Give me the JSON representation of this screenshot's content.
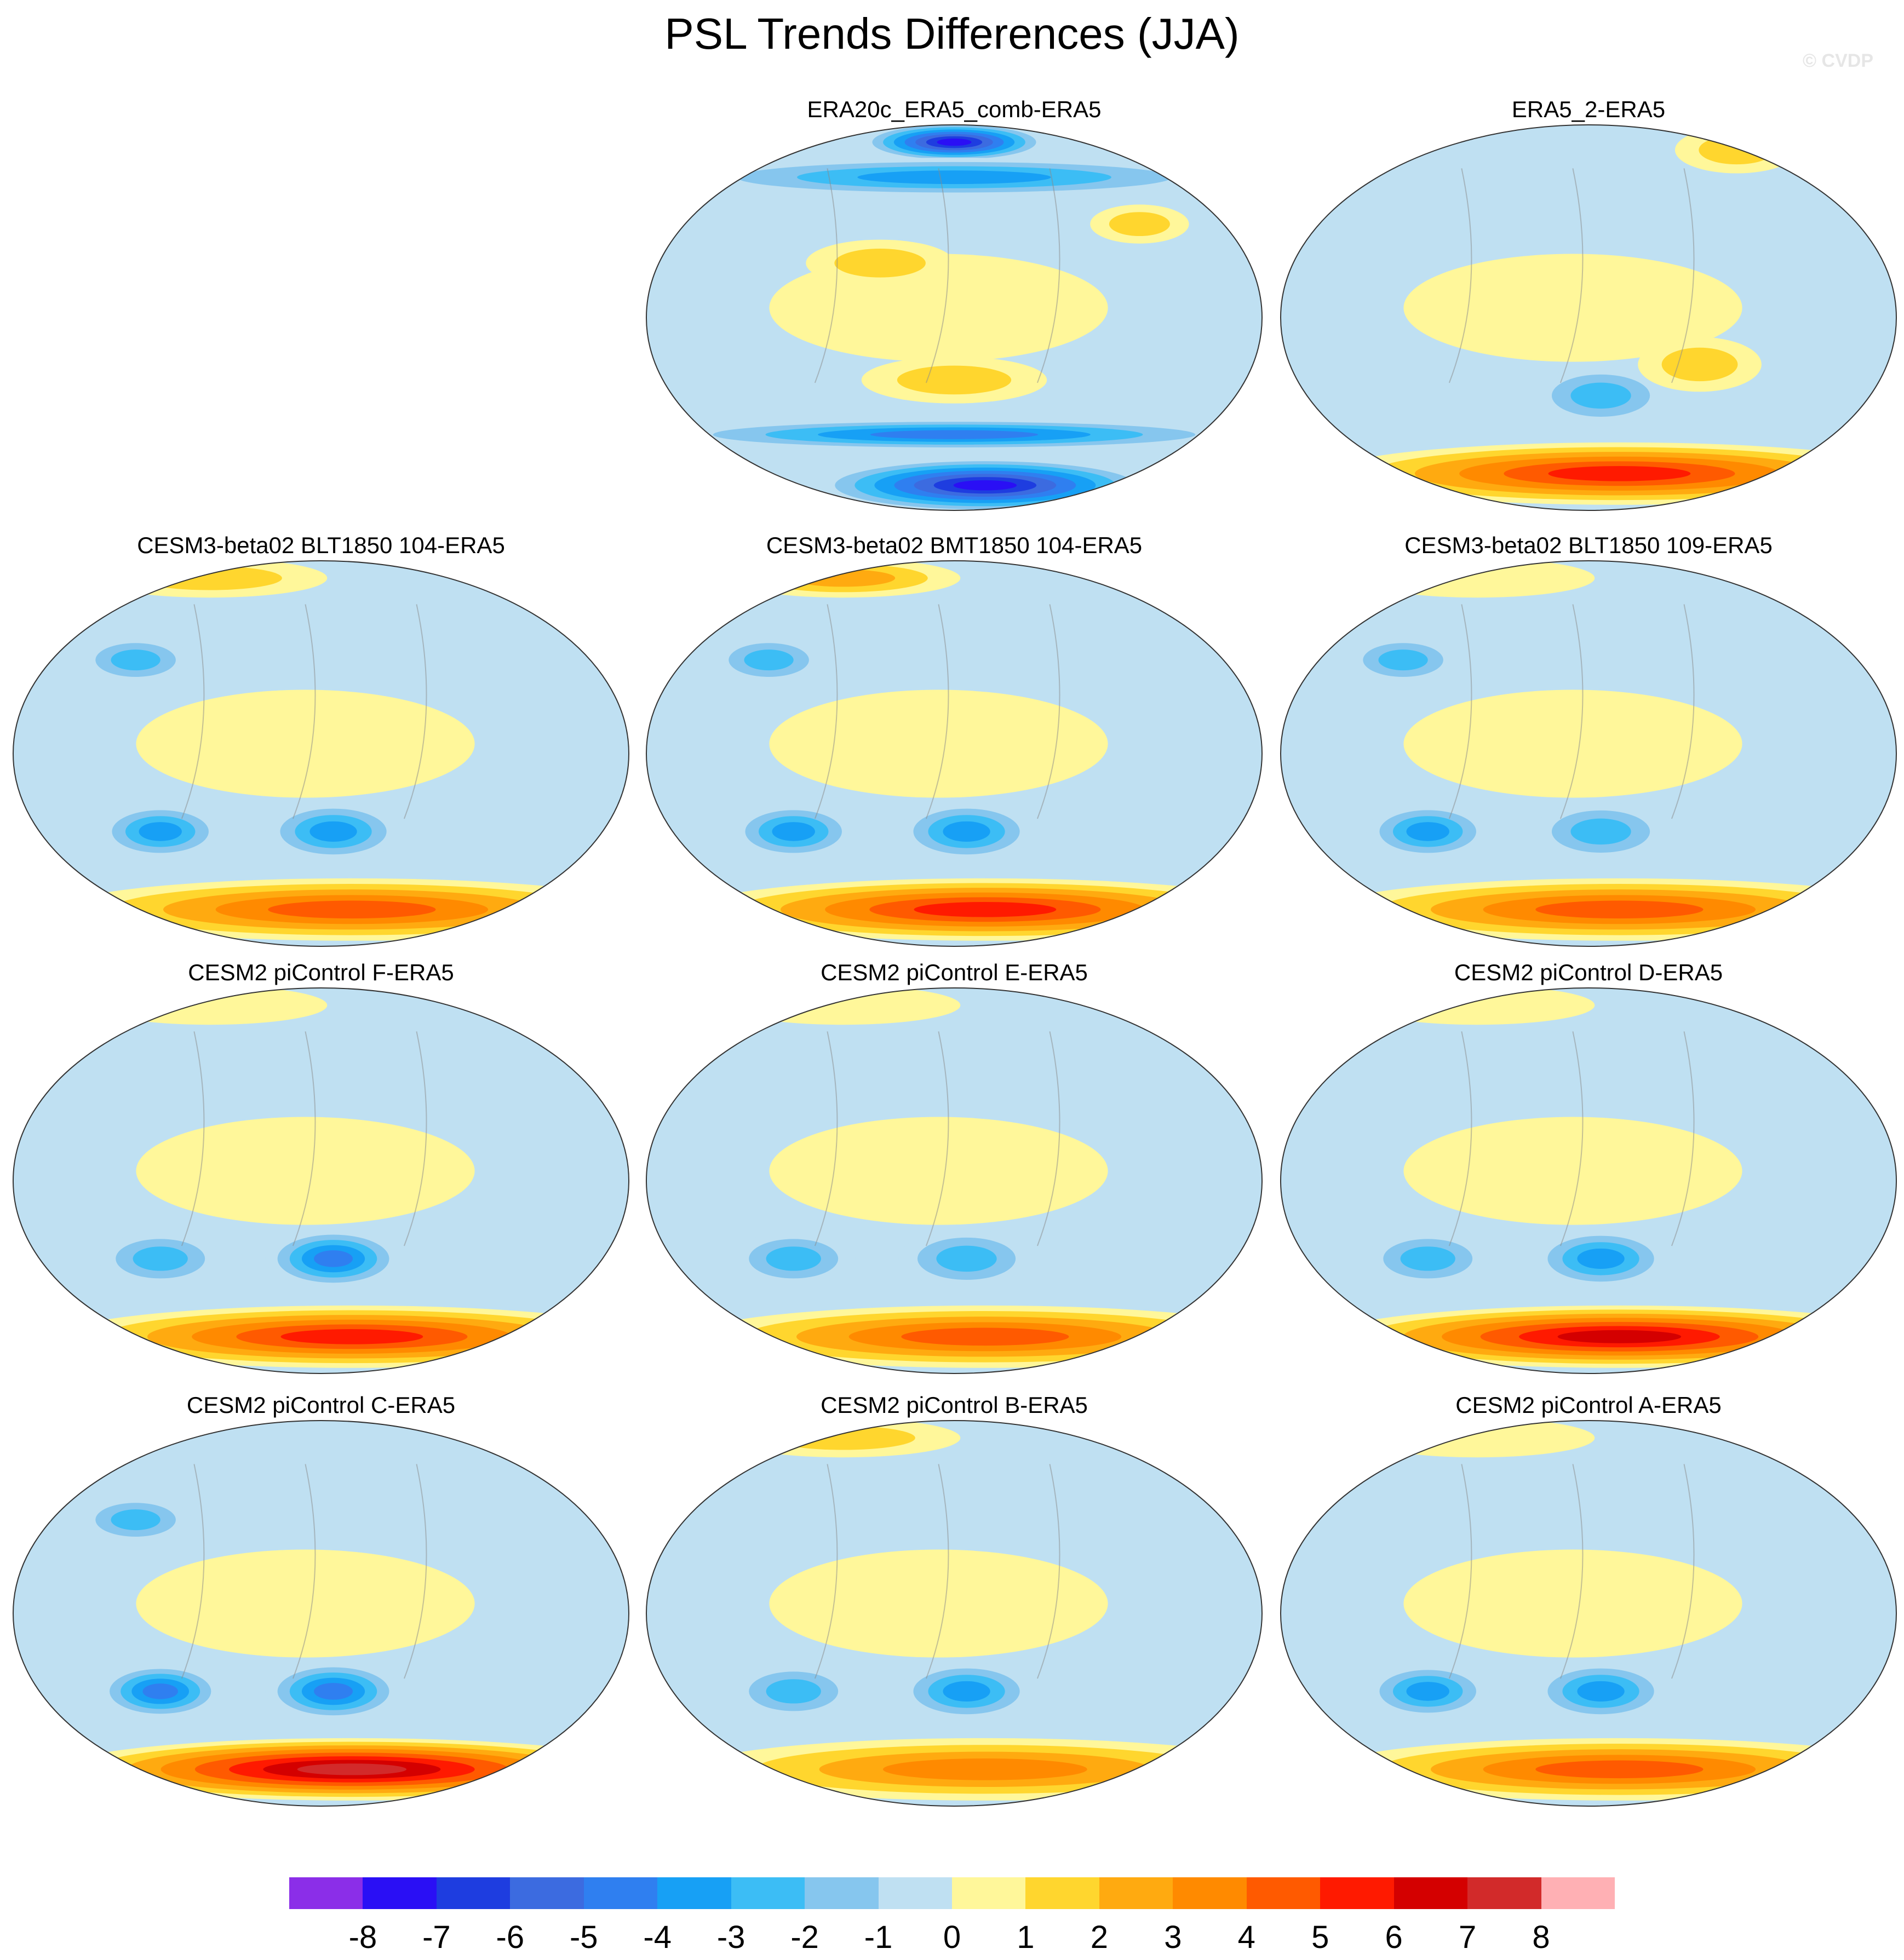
{
  "figure": {
    "title": "PSL Trends Differences (JJA)",
    "credit": "© CVDP"
  },
  "chart_data": {
    "type": "heatmap",
    "projection": "Robinson-like global map, Pacific-centered",
    "variable": "PSL trend difference (JJA)",
    "panels": [
      {
        "name": "ERA20c_ERA5_comb-ERA5",
        "row": 0,
        "col": 1,
        "features": [
          {
            "kind": "arctic_low",
            "value": -8
          },
          {
            "kind": "antarctic_low",
            "value": -8
          },
          {
            "kind": "north_pacific_high",
            "value": 2
          },
          {
            "kind": "south_pacific_high",
            "value": 2
          },
          {
            "kind": "north_atlantic_high",
            "value": 2
          },
          {
            "kind": "northern_belt",
            "value": -4
          },
          {
            "kind": "southern_belt",
            "value": -5
          }
        ]
      },
      {
        "name": "ERA5_2-ERA5",
        "row": 0,
        "col": 2,
        "features": [
          {
            "kind": "greenland_high",
            "value": 2
          },
          {
            "kind": "antarctic_high",
            "value": 6
          },
          {
            "kind": "south_pacific_low",
            "value": -3
          },
          {
            "kind": "south_atlantic_high",
            "value": 2
          }
        ]
      },
      {
        "name": "CESM3-beta02 BLT1850 104-ERA5",
        "row": 1,
        "col": 0,
        "features": [
          {
            "kind": "indian_ocean_low",
            "value": -4
          },
          {
            "kind": "south_pacific_low",
            "value": -4
          },
          {
            "kind": "antarctic_high",
            "value": 5
          },
          {
            "kind": "arctic_high",
            "value": 2
          },
          {
            "kind": "asia_low",
            "value": -3
          }
        ]
      },
      {
        "name": "CESM3-beta02 BMT1850 104-ERA5",
        "row": 1,
        "col": 1,
        "features": [
          {
            "kind": "indian_ocean_low",
            "value": -4
          },
          {
            "kind": "south_pacific_low",
            "value": -4
          },
          {
            "kind": "antarctic_high",
            "value": 6
          },
          {
            "kind": "arctic_high",
            "value": 3
          },
          {
            "kind": "asia_low",
            "value": -3
          }
        ]
      },
      {
        "name": "CESM3-beta02 BLT1850 109-ERA5",
        "row": 1,
        "col": 2,
        "features": [
          {
            "kind": "indian_ocean_low",
            "value": -4
          },
          {
            "kind": "south_pacific_low",
            "value": -3
          },
          {
            "kind": "antarctic_high",
            "value": 5
          },
          {
            "kind": "arctic_high",
            "value": 1
          },
          {
            "kind": "asia_low",
            "value": -3
          }
        ]
      },
      {
        "name": "CESM2 piControl F-ERA5",
        "row": 2,
        "col": 0,
        "features": [
          {
            "kind": "indian_ocean_low",
            "value": -3
          },
          {
            "kind": "south_pacific_low",
            "value": -5
          },
          {
            "kind": "antarctic_high",
            "value": 6
          },
          {
            "kind": "arctic_high",
            "value": 1
          }
        ]
      },
      {
        "name": "CESM2 piControl E-ERA5",
        "row": 2,
        "col": 1,
        "features": [
          {
            "kind": "indian_ocean_low",
            "value": -3
          },
          {
            "kind": "south_pacific_low",
            "value": -3
          },
          {
            "kind": "antarctic_high",
            "value": 5
          },
          {
            "kind": "arctic_high",
            "value": 1
          }
        ]
      },
      {
        "name": "CESM2 piControl D-ERA5",
        "row": 2,
        "col": 2,
        "features": [
          {
            "kind": "indian_ocean_low",
            "value": -3
          },
          {
            "kind": "south_pacific_low",
            "value": -4
          },
          {
            "kind": "antarctic_high",
            "value": 7
          },
          {
            "kind": "arctic_high",
            "value": 1
          }
        ]
      },
      {
        "name": "CESM2 piControl C-ERA5",
        "row": 3,
        "col": 0,
        "features": [
          {
            "kind": "indian_ocean_low",
            "value": -5
          },
          {
            "kind": "south_pacific_low",
            "value": -5
          },
          {
            "kind": "antarctic_high",
            "value": 8
          },
          {
            "kind": "asia_low",
            "value": -3
          }
        ]
      },
      {
        "name": "CESM2 piControl B-ERA5",
        "row": 3,
        "col": 1,
        "features": [
          {
            "kind": "indian_ocean_low",
            "value": -3
          },
          {
            "kind": "south_pacific_low",
            "value": -4
          },
          {
            "kind": "antarctic_high",
            "value": 4
          },
          {
            "kind": "arctic_high",
            "value": 2
          }
        ]
      },
      {
        "name": "CESM2 piControl A-ERA5",
        "row": 3,
        "col": 2,
        "features": [
          {
            "kind": "indian_ocean_low",
            "value": -4
          },
          {
            "kind": "south_pacific_low",
            "value": -4
          },
          {
            "kind": "antarctic_high",
            "value": 5
          },
          {
            "kind": "arctic_high",
            "value": 1
          }
        ]
      }
    ],
    "colorbar": {
      "levels": [
        "-8",
        "-7",
        "-6",
        "-5",
        "-4",
        "-3",
        "-2",
        "-1",
        "0",
        "1",
        "2",
        "3",
        "4",
        "5",
        "6",
        "7",
        "8"
      ],
      "colors": [
        "#8b2ee8",
        "#2a0ff5",
        "#1e3de0",
        "#3c6be0",
        "#2f7ff0",
        "#17a0f5",
        "#3cbdf5",
        "#86c6ee",
        "#bfe0f2",
        "#fff79a",
        "#ffd62e",
        "#ffaa10",
        "#ff8a00",
        "#ff5a00",
        "#ff1a00",
        "#d40000",
        "#d22a2a",
        "#ffb0b4"
      ]
    }
  }
}
